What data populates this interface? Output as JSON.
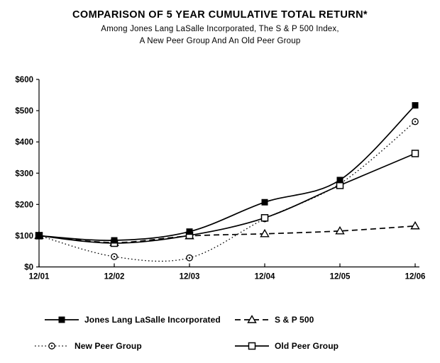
{
  "chart_data": {
    "type": "line",
    "title": "COMPARISON OF 5 YEAR CUMULATIVE TOTAL RETURN*",
    "subtitle1": "Among Jones Lang LaSalle Incorporated, The S & P 500 Index,",
    "subtitle2": "A New Peer Group And An Old Peer Group",
    "categories": [
      "12/01",
      "12/02",
      "12/03",
      "12/04",
      "12/05",
      "12/06"
    ],
    "y_axis": {
      "min": 0,
      "max": 600,
      "step": 100,
      "tick_labels": [
        "$0",
        "$100",
        "$200",
        "$300",
        "$400",
        "$500",
        "$600"
      ]
    },
    "grid": false,
    "legend_position": "bottom",
    "line_color": "#000000",
    "background_color": "#ffffff",
    "series": [
      {
        "name": "Jones Lang LaSalle Incorporated",
        "values": [
          100,
          85,
          113,
          207,
          278,
          517
        ],
        "line": "solid",
        "marker": "filled-square"
      },
      {
        "name": "S & P 500",
        "values": [
          100,
          78,
          99,
          106,
          115,
          131
        ],
        "line": "dashed",
        "marker": "open-triangle"
      },
      {
        "name": "New Peer Group",
        "values": [
          100,
          33,
          29,
          154,
          266,
          465
        ],
        "line": "dotted",
        "marker": "circle-dot"
      },
      {
        "name": "Old Peer Group",
        "values": [
          100,
          76,
          101,
          157,
          261,
          363
        ],
        "line": "solid",
        "marker": "open-square"
      }
    ]
  }
}
